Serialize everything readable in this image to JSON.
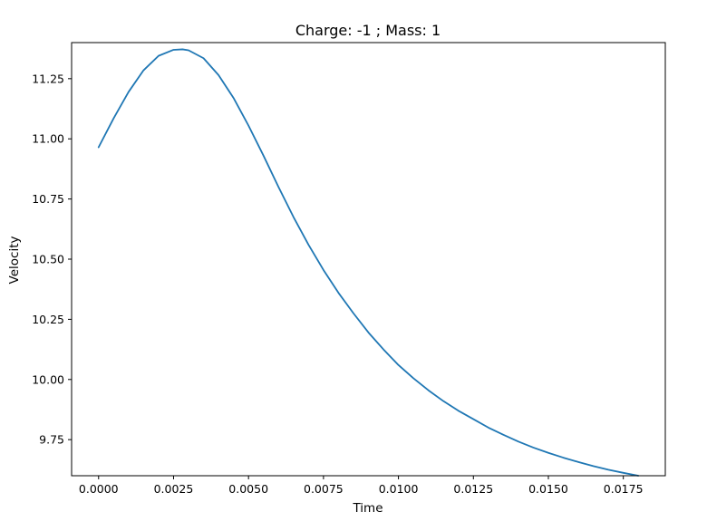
{
  "chart_data": {
    "type": "line",
    "title": "Charge: -1 ; Mass: 1",
    "xlabel": "Time",
    "ylabel": "Velocity",
    "xlim": [
      -0.0009,
      0.0189
    ],
    "ylim": [
      9.6,
      11.4
    ],
    "grid": false,
    "xticks": [
      0.0,
      0.0025,
      0.005,
      0.0075,
      0.01,
      0.0125,
      0.015,
      0.0175
    ],
    "xtick_labels": [
      "0.0000",
      "0.0025",
      "0.0050",
      "0.0075",
      "0.0100",
      "0.0125",
      "0.0150",
      "0.0175"
    ],
    "yticks": [
      9.75,
      10.0,
      10.25,
      10.5,
      10.75,
      11.0,
      11.25
    ],
    "ytick_labels": [
      "9.75",
      "10.00",
      "10.25",
      "10.50",
      "10.75",
      "11.00",
      "11.25"
    ],
    "series": [
      {
        "color": "#1f77b4",
        "x": [
          0.0,
          0.0005,
          0.001,
          0.0015,
          0.002,
          0.0025,
          0.0028,
          0.003,
          0.0035,
          0.004,
          0.0045,
          0.005,
          0.0055,
          0.006,
          0.0065,
          0.007,
          0.0075,
          0.008,
          0.0085,
          0.009,
          0.0095,
          0.01,
          0.0105,
          0.011,
          0.0115,
          0.012,
          0.0125,
          0.013,
          0.0135,
          0.014,
          0.0145,
          0.015,
          0.0155,
          0.016,
          0.0165,
          0.017,
          0.0175,
          0.018
        ],
        "y": [
          10.965,
          11.085,
          11.195,
          11.285,
          11.345,
          11.37,
          11.372,
          11.368,
          11.335,
          11.265,
          11.17,
          11.055,
          10.93,
          10.8,
          10.675,
          10.56,
          10.455,
          10.36,
          10.275,
          10.195,
          10.125,
          10.06,
          10.005,
          9.955,
          9.91,
          9.87,
          9.835,
          9.8,
          9.77,
          9.742,
          9.717,
          9.695,
          9.675,
          9.657,
          9.64,
          9.625,
          9.612,
          9.6
        ]
      }
    ]
  }
}
